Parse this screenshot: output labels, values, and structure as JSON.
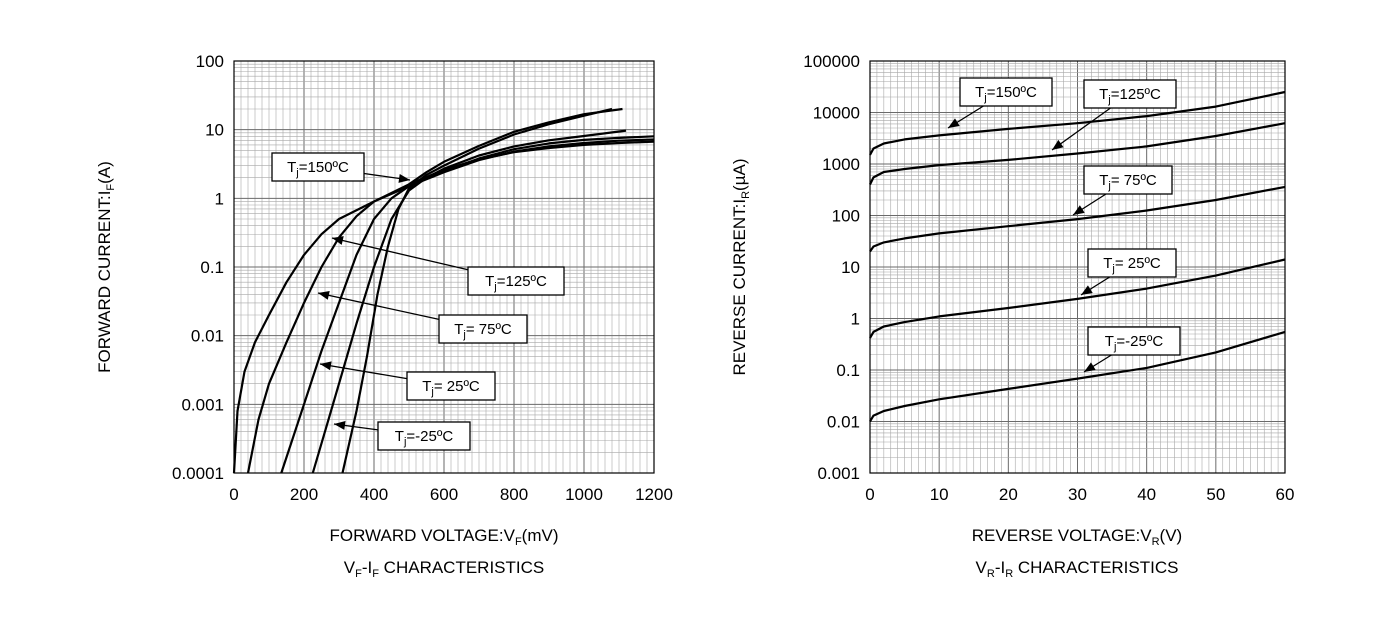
{
  "chart_data": [
    {
      "type": "line",
      "caption": {
        "a": "V",
        "a_sub": "F",
        "mid": "-I",
        "b_sub": "F",
        "tail": " CHARACTERISTICS"
      },
      "xlabel": {
        "main": "FORWARD VOLTAGE:V",
        "sub": "F",
        "tail": "(mV)"
      },
      "ylabel": {
        "main": "FORWARD CURRENT:I",
        "sub": "F",
        "tail": "(A)"
      },
      "xscale": "linear",
      "yscale": "log",
      "xlim": [
        0,
        1200
      ],
      "ylim": [
        0.0001,
        100
      ],
      "x_ticks": [
        "0",
        "200",
        "400",
        "600",
        "800",
        "1000",
        "1200"
      ],
      "y_ticks": [
        "0.0001",
        "0.001",
        "0.01",
        "0.1",
        "1",
        "10",
        "100"
      ],
      "grid": true,
      "series": [
        {
          "name": "Tj=150ºC",
          "label": {
            "pre": "T",
            "sub": "j",
            "post": "=150ºC"
          },
          "points": [
            [
              0,
              0.0001
            ],
            [
              10,
              0.0008
            ],
            [
              30,
              0.003
            ],
            [
              60,
              0.008
            ],
            [
              100,
              0.02
            ],
            [
              150,
              0.06
            ],
            [
              200,
              0.15
            ],
            [
              250,
              0.3
            ],
            [
              300,
              0.5
            ],
            [
              400,
              0.9
            ],
            [
              500,
              1.6
            ],
            [
              600,
              2.6
            ],
            [
              700,
              3.7
            ],
            [
              800,
              4.7
            ],
            [
              900,
              5.4
            ],
            [
              1000,
              6.0
            ],
            [
              1100,
              6.4
            ],
            [
              1200,
              6.7
            ]
          ]
        },
        {
          "name": "Tj=125ºC",
          "label": {
            "pre": "T",
            "sub": "j",
            "post": "=125ºC"
          },
          "points": [
            [
              40,
              0.0001
            ],
            [
              70,
              0.0006
            ],
            [
              100,
              0.002
            ],
            [
              150,
              0.008
            ],
            [
              200,
              0.03
            ],
            [
              250,
              0.1
            ],
            [
              300,
              0.27
            ],
            [
              350,
              0.55
            ],
            [
              400,
              0.9
            ],
            [
              500,
              1.5
            ],
            [
              600,
              2.4
            ],
            [
              700,
              3.6
            ],
            [
              800,
              4.8
            ],
            [
              900,
              5.7
            ],
            [
              1000,
              6.4
            ],
            [
              1100,
              6.9
            ],
            [
              1200,
              7.2
            ]
          ]
        },
        {
          "name": "Tj= 75ºC",
          "label": {
            "pre": "T",
            "sub": "j",
            "post": "= 75ºC"
          },
          "points": [
            [
              135,
              0.0001
            ],
            [
              200,
              0.001
            ],
            [
              250,
              0.006
            ],
            [
              300,
              0.03
            ],
            [
              350,
              0.15
            ],
            [
              400,
              0.5
            ],
            [
              450,
              1.0
            ],
            [
              500,
              1.5
            ],
            [
              600,
              2.5
            ],
            [
              700,
              3.8
            ],
            [
              800,
              5.2
            ],
            [
              900,
              6.3
            ],
            [
              1000,
              7.1
            ],
            [
              1100,
              7.6
            ],
            [
              1200,
              8.0
            ]
          ]
        },
        {
          "name": "Tj= 25ºC",
          "label": {
            "pre": "T",
            "sub": "j",
            "post": "= 25ºC"
          },
          "points": [
            [
              225,
              0.0001
            ],
            [
              270,
              0.0006
            ],
            [
              300,
              0.002
            ],
            [
              350,
              0.015
            ],
            [
              400,
              0.1
            ],
            [
              450,
              0.5
            ],
            [
              500,
              1.3
            ],
            [
              550,
              2.0
            ],
            [
              600,
              2.7
            ],
            [
              700,
              4.2
            ],
            [
              800,
              5.7
            ],
            [
              900,
              7.0
            ],
            [
              1000,
              8.1
            ],
            [
              1120,
              9.7
            ]
          ]
        },
        {
          "name": "Tj=-25ºC",
          "label": {
            "pre": "T",
            "sub": "j",
            "post": "=-25ºC"
          },
          "points": [
            [
              310,
              0.0001
            ],
            [
              350,
              0.0008
            ],
            [
              380,
              0.005
            ],
            [
              410,
              0.04
            ],
            [
              440,
              0.2
            ],
            [
              470,
              0.7
            ],
            [
              500,
              1.4
            ],
            [
              550,
              2.2
            ],
            [
              600,
              3.0
            ],
            [
              700,
              5.3
            ],
            [
              800,
              8.5
            ],
            [
              900,
              12.0
            ],
            [
              1000,
              16.0
            ],
            [
              1080,
              20.0
            ]
          ]
        },
        {
          "name": "",
          "label": null,
          "points": [
            [
              500,
              1.6
            ],
            [
              550,
              2.4
            ],
            [
              600,
              3.4
            ],
            [
              700,
              5.8
            ],
            [
              800,
              9.3
            ],
            [
              900,
              12.8
            ],
            [
              1000,
              16.8
            ],
            [
              1110,
              20.0
            ]
          ]
        }
      ]
    },
    {
      "type": "line",
      "caption": {
        "a": "V",
        "a_sub": "R",
        "mid": "-I",
        "b_sub": "R",
        "tail": " CHARACTERISTICS"
      },
      "xlabel": {
        "main": "REVERSE VOLTAGE:V",
        "sub": "R",
        "tail": "(V)"
      },
      "ylabel": {
        "main": "REVERSE CURRENT:I",
        "sub": "R",
        "tail": "(µA)"
      },
      "xscale": "linear",
      "yscale": "log",
      "xlim": [
        0,
        60
      ],
      "ylim": [
        0.001,
        100000
      ],
      "x_ticks": [
        "0",
        "10",
        "20",
        "30",
        "40",
        "50",
        "60"
      ],
      "y_ticks": [
        "0.001",
        "0.01",
        "0.1",
        "1",
        "10",
        "100",
        "1000",
        "10000",
        "100000"
      ],
      "grid": true,
      "series": [
        {
          "name": "Tj=150ºC",
          "label": {
            "pre": "T",
            "sub": "j",
            "post": "=150ºC"
          },
          "points": [
            [
              0,
              1500
            ],
            [
              0.5,
              2000
            ],
            [
              2,
              2500
            ],
            [
              5,
              3000
            ],
            [
              10,
              3600
            ],
            [
              20,
              4800
            ],
            [
              30,
              6200
            ],
            [
              40,
              8500
            ],
            [
              50,
              13000
            ],
            [
              60,
              25000
            ]
          ]
        },
        {
          "name": "Tj=125ºC",
          "label": {
            "pre": "T",
            "sub": "j",
            "post": "=125ºC"
          },
          "points": [
            [
              0,
              400
            ],
            [
              0.5,
              550
            ],
            [
              2,
              700
            ],
            [
              5,
              800
            ],
            [
              10,
              950
            ],
            [
              20,
              1200
            ],
            [
              30,
              1600
            ],
            [
              40,
              2200
            ],
            [
              50,
              3500
            ],
            [
              60,
              6200
            ]
          ]
        },
        {
          "name": "Tj= 75ºC",
          "label": {
            "pre": "T",
            "sub": "j",
            "post": "= 75ºC"
          },
          "points": [
            [
              0,
              20
            ],
            [
              0.5,
              25
            ],
            [
              2,
              30
            ],
            [
              5,
              36
            ],
            [
              10,
              45
            ],
            [
              20,
              62
            ],
            [
              30,
              85
            ],
            [
              40,
              125
            ],
            [
              50,
              200
            ],
            [
              60,
              360
            ]
          ]
        },
        {
          "name": "Tj= 25ºC",
          "label": {
            "pre": "T",
            "sub": "j",
            "post": "= 25ºC"
          },
          "points": [
            [
              0,
              0.42
            ],
            [
              0.5,
              0.55
            ],
            [
              2,
              0.7
            ],
            [
              5,
              0.85
            ],
            [
              10,
              1.1
            ],
            [
              20,
              1.6
            ],
            [
              30,
              2.4
            ],
            [
              40,
              3.8
            ],
            [
              50,
              6.8
            ],
            [
              60,
              14
            ]
          ]
        },
        {
          "name": "Tj=-25ºC",
          "label": {
            "pre": "T",
            "sub": "j",
            "post": "=-25ºC"
          },
          "points": [
            [
              0,
              0.01
            ],
            [
              0.5,
              0.013
            ],
            [
              2,
              0.016
            ],
            [
              5,
              0.02
            ],
            [
              10,
              0.027
            ],
            [
              20,
              0.043
            ],
            [
              30,
              0.068
            ],
            [
              40,
              0.11
            ],
            [
              50,
              0.22
            ],
            [
              60,
              0.55
            ]
          ]
        }
      ]
    }
  ]
}
